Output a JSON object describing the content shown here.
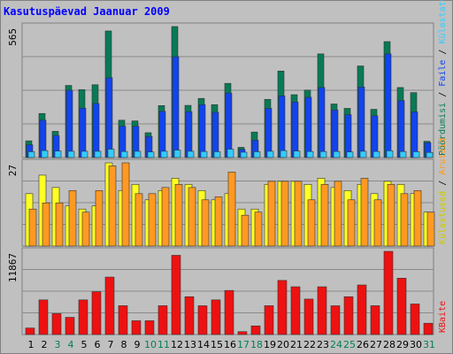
{
  "title": "Kasutuspäevad Jaanuar 2009",
  "colors": {
    "visits": "#087a56",
    "pages": "#1144ee",
    "files": "#33ccff",
    "hits": "#ffff22",
    "kbytes": "#ee1111",
    "orange": "#ff9922"
  },
  "chart_data": [
    {
      "type": "bar",
      "ymax_label": "565",
      "ylim": [
        0,
        565
      ],
      "legend": [
        {
          "text": "Pöördumisi",
          "color": "#087a56"
        },
        {
          "text": " / ",
          "color": "#000000"
        },
        {
          "text": "Faile",
          "color": "#1144ee"
        },
        {
          "text": " / ",
          "color": "#000000"
        },
        {
          "text": "Külastatud lehekülgi",
          "color": "#33ccff"
        }
      ],
      "categories": [
        "1",
        "2",
        "3",
        "4",
        "5",
        "6",
        "7",
        "8",
        "9",
        "10",
        "11",
        "12",
        "13",
        "14",
        "15",
        "16",
        "17",
        "18",
        "19",
        "20",
        "21",
        "22",
        "23",
        "24",
        "25",
        "26",
        "27",
        "28",
        "29",
        "30",
        "31"
      ],
      "series": [
        {
          "name": "Pöördumisi",
          "values": [
            72,
            190,
            113,
            311,
            293,
            314,
            546,
            161,
            158,
            107,
            224,
            565,
            225,
            255,
            228,
            320,
            44,
            110,
            251,
            373,
            271,
            291,
            447,
            231,
            212,
            395,
            208,
            500,
            302,
            280,
            70
          ]
        },
        {
          "name": "Faile",
          "values": [
            55,
            161,
            95,
            290,
            213,
            233,
            344,
            135,
            135,
            91,
            199,
            435,
            198,
            228,
            195,
            278,
            35,
            75,
            212,
            266,
            239,
            260,
            302,
            205,
            185,
            304,
            180,
            447,
            246,
            197,
            64
          ]
        },
        {
          "name": "Külastatud lehekülgi",
          "values": [
            25,
            30,
            28,
            27,
            27,
            27,
            36,
            26,
            27,
            24,
            27,
            32,
            27,
            26,
            25,
            36,
            23,
            25,
            27,
            30,
            28,
            26,
            26,
            26,
            24,
            27,
            26,
            29,
            26,
            25,
            22
          ]
        }
      ]
    },
    {
      "type": "bar",
      "ymax_label": "27",
      "ylim": [
        0,
        27
      ],
      "legend": [
        {
          "text": "Külastused",
          "color": "#cccc00"
        },
        {
          "text": " / ",
          "color": "#000000"
        },
        {
          "text": "Aruteid",
          "color": "#ff9922"
        }
      ],
      "categories": [
        "1",
        "2",
        "3",
        "4",
        "5",
        "6",
        "7",
        "8",
        "9",
        "10",
        "11",
        "12",
        "13",
        "14",
        "15",
        "16",
        "17",
        "18",
        "19",
        "20",
        "21",
        "22",
        "23",
        "24",
        "25",
        "26",
        "27",
        "28",
        "29",
        "30",
        "31"
      ],
      "series": [
        {
          "name": "Külastused",
          "values": [
            17,
            23,
            19,
            13,
            12,
            13,
            27,
            18,
            20,
            15,
            18,
            22,
            20,
            18,
            15,
            17,
            12,
            12,
            20,
            21,
            21,
            20,
            22,
            19,
            18,
            20,
            17,
            21,
            20,
            17,
            11
          ]
        },
        {
          "name": "Aruteid",
          "values": [
            12,
            14,
            14,
            18,
            11,
            18,
            26,
            27,
            17,
            17,
            19,
            20,
            19,
            15,
            16,
            24,
            10,
            11,
            21,
            21,
            21,
            15,
            20,
            21,
            15,
            22,
            15,
            20,
            17,
            18,
            11
          ]
        }
      ]
    },
    {
      "type": "bar",
      "ymax_label": "11867",
      "ylim": [
        0,
        11867
      ],
      "legend": [
        {
          "text": "KBaite",
          "color": "#ee1111"
        }
      ],
      "categories": [
        "1",
        "2",
        "3",
        "4",
        "5",
        "6",
        "7",
        "8",
        "9",
        "10",
        "11",
        "12",
        "13",
        "14",
        "15",
        "16",
        "17",
        "18",
        "19",
        "20",
        "21",
        "22",
        "23",
        "24",
        "25",
        "26",
        "27",
        "28",
        "29",
        "30",
        "31"
      ],
      "series": [
        {
          "name": "KBaite",
          "values": [
            929,
            4941,
            2980,
            2456,
            4941,
            6103,
            8199,
            4112,
            1967,
            1967,
            4112,
            11302,
            5394,
            4104,
            4941,
            6286,
            410,
            1232,
            4112,
            7719,
            6813,
            5058,
            6813,
            4104,
            5394,
            7069,
            4112,
            11867,
            8041,
            4360,
            1612
          ]
        }
      ]
    }
  ],
  "x_labels": [
    {
      "text": "1",
      "color": "#000000"
    },
    {
      "text": "2",
      "color": "#000000"
    },
    {
      "text": "3",
      "color": "#008050"
    },
    {
      "text": "4",
      "color": "#008050"
    },
    {
      "text": "5",
      "color": "#000000"
    },
    {
      "text": "6",
      "color": "#000000"
    },
    {
      "text": "7",
      "color": "#000000"
    },
    {
      "text": "8",
      "color": "#000000"
    },
    {
      "text": "9",
      "color": "#000000"
    },
    {
      "text": "10",
      "color": "#008050"
    },
    {
      "text": "11",
      "color": "#008050"
    },
    {
      "text": "12",
      "color": "#000000"
    },
    {
      "text": "13",
      "color": "#000000"
    },
    {
      "text": "14",
      "color": "#000000"
    },
    {
      "text": "15",
      "color": "#000000"
    },
    {
      "text": "16",
      "color": "#000000"
    },
    {
      "text": "17",
      "color": "#008050"
    },
    {
      "text": "18",
      "color": "#008050"
    },
    {
      "text": "19",
      "color": "#000000"
    },
    {
      "text": "20",
      "color": "#000000"
    },
    {
      "text": "21",
      "color": "#000000"
    },
    {
      "text": "22",
      "color": "#000000"
    },
    {
      "text": "23",
      "color": "#000000"
    },
    {
      "text": "24",
      "color": "#008050"
    },
    {
      "text": "25",
      "color": "#008050"
    },
    {
      "text": "26",
      "color": "#000000"
    },
    {
      "text": "27",
      "color": "#000000"
    },
    {
      "text": "28",
      "color": "#000000"
    },
    {
      "text": "29",
      "color": "#000000"
    },
    {
      "text": "30",
      "color": "#000000"
    },
    {
      "text": "31",
      "color": "#008050"
    }
  ]
}
